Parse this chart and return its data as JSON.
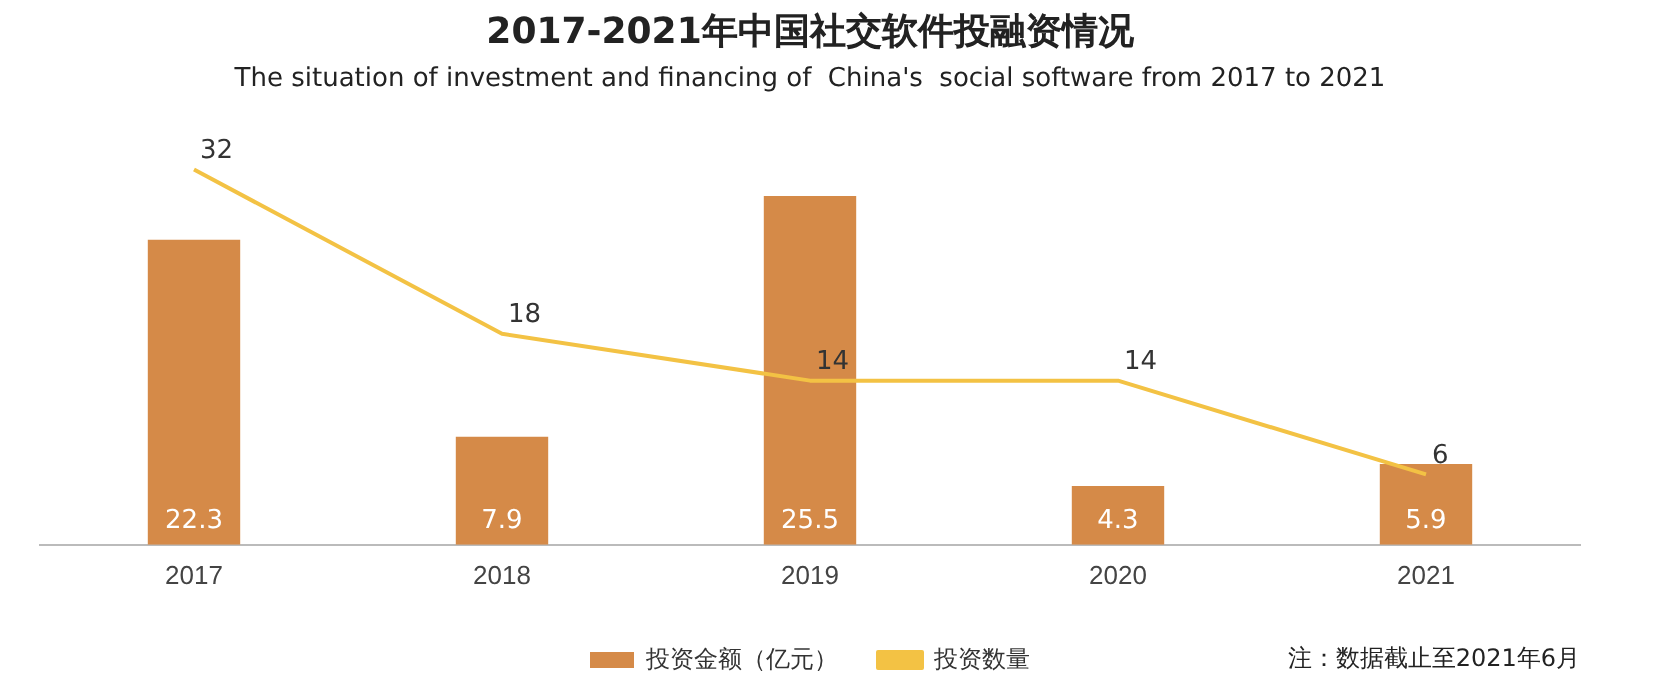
{
  "chart_data": {
    "type": "bar",
    "title": "2017-2021年中国社交软件投融资情况",
    "subtitle": "The situation of investment and financing of  China's  social software from 2017 to 2021",
    "categories": [
      "2017",
      "2018",
      "2019",
      "2020",
      "2021"
    ],
    "series": [
      {
        "name": "投资金额（亿元）",
        "color": "#d58a48",
        "values": [
          22.3,
          7.9,
          25.5,
          4.3,
          5.9
        ]
      },
      {
        "name": "投资数量",
        "type": "line",
        "axis": "y2",
        "color": "#f3c244",
        "values": [
          32,
          18,
          14,
          14,
          6
        ]
      }
    ],
    "data_labels": true,
    "grid": false,
    "legend": "bottom",
    "marker": "none",
    "annotations": [
      "注：数据截止至2021年6月"
    ]
  }
}
